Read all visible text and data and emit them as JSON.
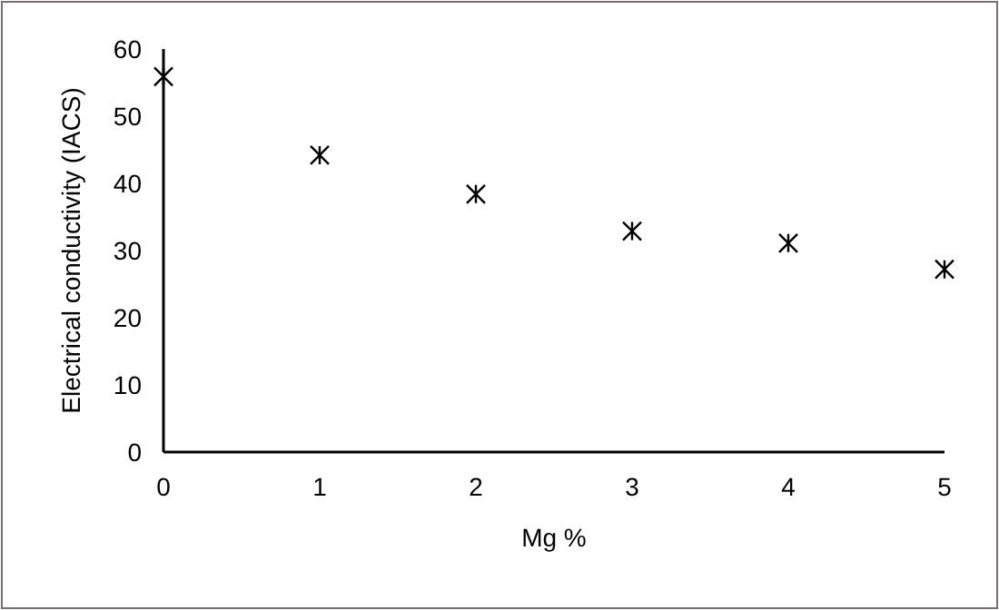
{
  "chart_data": {
    "type": "scatter",
    "xlabel": "Mg %",
    "ylabel": "Electrical conductivity (IACS)",
    "x": [
      0,
      1,
      2,
      3,
      4,
      5
    ],
    "series": [
      {
        "color": "#000000",
        "values": [
          55.9,
          44.2,
          38.4,
          32.9,
          31.1,
          27.2
        ]
      }
    ],
    "xlim": [
      0,
      5
    ],
    "xticks": [
      0,
      1,
      2,
      3,
      4,
      5
    ],
    "ylim": [
      0,
      60
    ],
    "yticks": [
      0,
      10,
      20,
      30,
      40,
      50,
      60
    ],
    "grid": false,
    "marker": "cross"
  }
}
